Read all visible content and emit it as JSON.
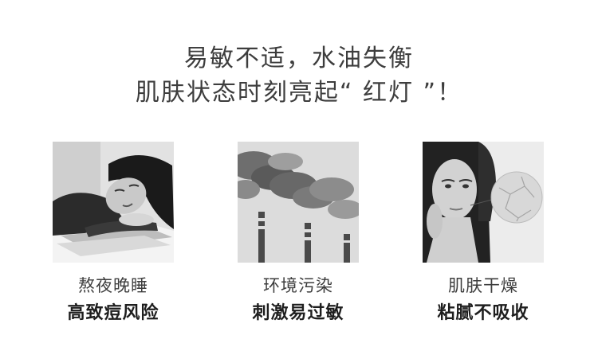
{
  "header": {
    "line1": "易敏不适，水油失衡",
    "line2": "肌肤状态时刻亮起“ 红灯 ”！"
  },
  "cards": [
    {
      "title": "熬夜晚睡",
      "subtitle": "高致痘风险",
      "image": "sleeping-woman-photo"
    },
    {
      "title": "环境污染",
      "subtitle": "刺激易过敏",
      "image": "factory-smoke-photo"
    },
    {
      "title": "肌肤干燥",
      "subtitle": "粘腻不吸收",
      "image": "dry-skin-woman-photo"
    }
  ]
}
